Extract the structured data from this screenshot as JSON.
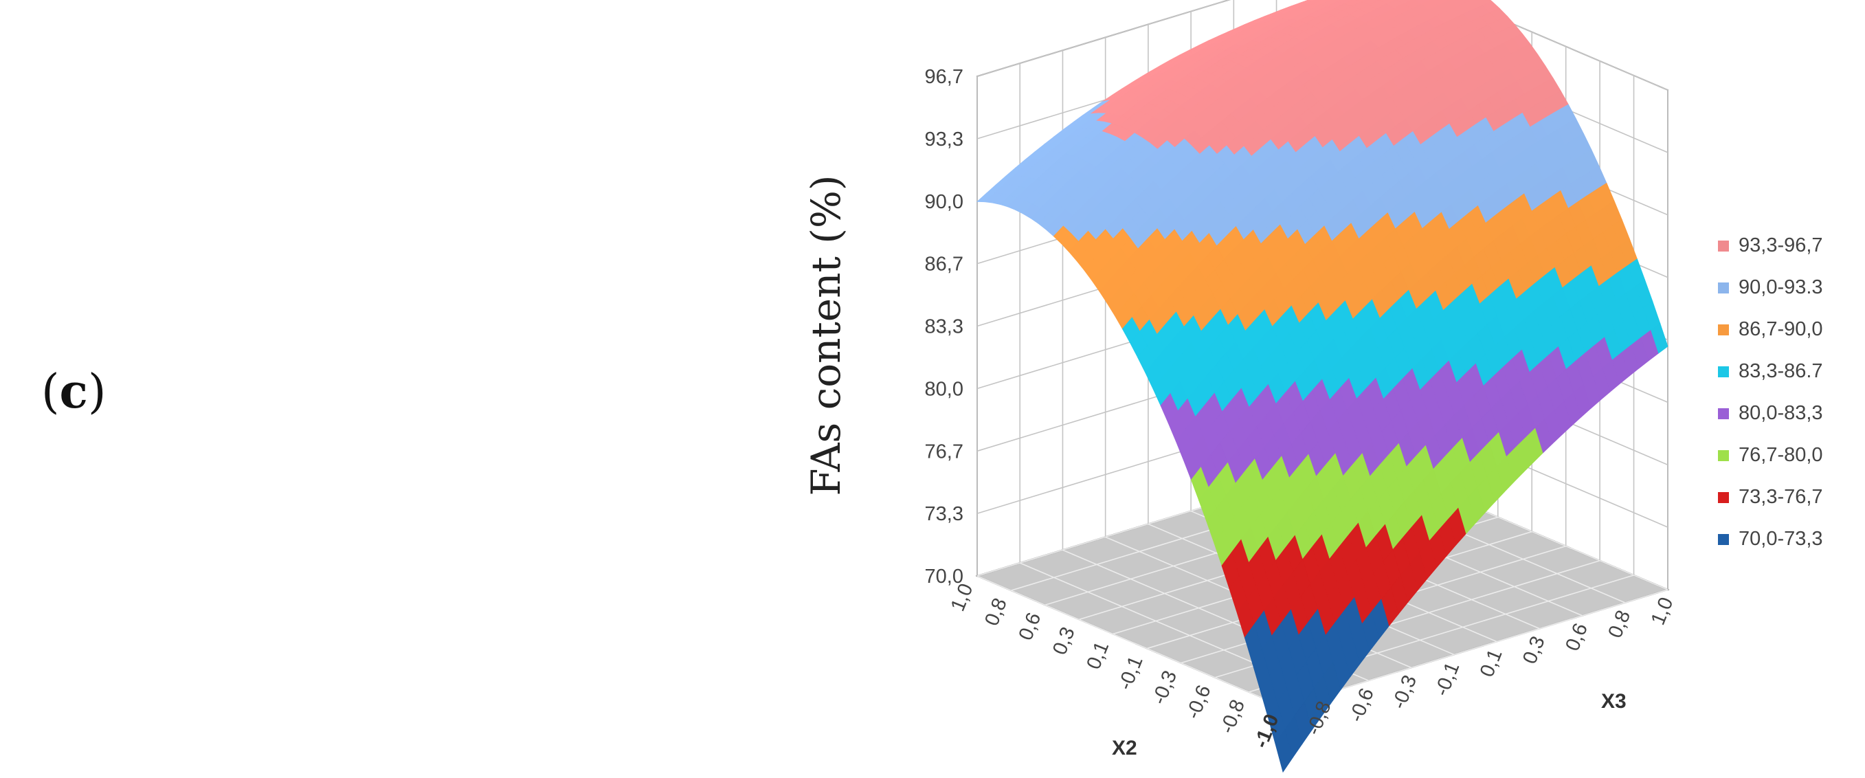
{
  "panel_label": "c",
  "chart_data": {
    "type": "surface3d",
    "title": "",
    "zlabel": "FAs content (%)",
    "xlabel": "X2",
    "ylabel": "X3",
    "z_ticks": [
      "70,0",
      "73,3",
      "76,7",
      "80,0",
      "83,3",
      "86,7",
      "90,0",
      "93,3",
      "96,7"
    ],
    "z_range": [
      70.0,
      96.7
    ],
    "x2_ticks": [
      "1,0",
      "0,8",
      "0,6",
      "0,3",
      "0,1",
      "-0,1",
      "-0,3",
      "-0,6",
      "-0,8",
      "-1,0"
    ],
    "x3_ticks": [
      "-0,8",
      "-0,6",
      "-0,3",
      "-0,1",
      "0,1",
      "0,3",
      "0,6",
      "0,8",
      "1,0"
    ],
    "x_range": [
      -1.0,
      1.0
    ],
    "y_range": [
      -1.0,
      1.0
    ],
    "surface_corners": {
      "x2_pos1_x3_neg1": 90.0,
      "x2_pos1_x3_pos1": 95.0,
      "x2_neg1_x3_neg1": 70.0,
      "x2_neg1_x3_pos1": 83.0
    },
    "legend": [
      {
        "label": "93,3-96,7",
        "color": "#f08a8e"
      },
      {
        "label": "90,0-93.3",
        "color": "#8cb5ec"
      },
      {
        "label": "86,7-90,0",
        "color": "#f79a3e"
      },
      {
        "label": "83,3-86.7",
        "color": "#1cc7e6"
      },
      {
        "label": "80,0-83,3",
        "color": "#9a5fd6"
      },
      {
        "label": "76,7-80,0",
        "color": "#9ee04a"
      },
      {
        "label": "73,3-76,7",
        "color": "#d81e1e"
      },
      {
        "label": "70,0-73,3",
        "color": "#1f5fa8"
      }
    ],
    "grid": true,
    "legend_position": "right"
  }
}
